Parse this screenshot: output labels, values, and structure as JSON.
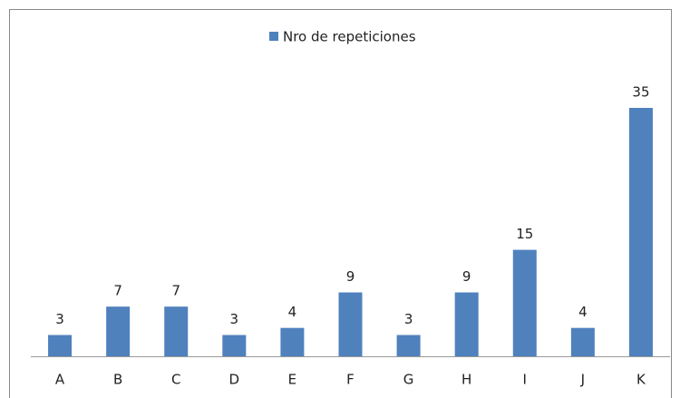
{
  "chart_data": {
    "type": "bar",
    "categories": [
      "A",
      "B",
      "C",
      "D",
      "E",
      "F",
      "G",
      "H",
      "I",
      "J",
      "K"
    ],
    "series": [
      {
        "name": "Nro de repeticiones",
        "color": "#4f81bd",
        "values": [
          3,
          7,
          7,
          3,
          4,
          9,
          3,
          9,
          15,
          4,
          35
        ]
      }
    ],
    "legend": "top"
  }
}
